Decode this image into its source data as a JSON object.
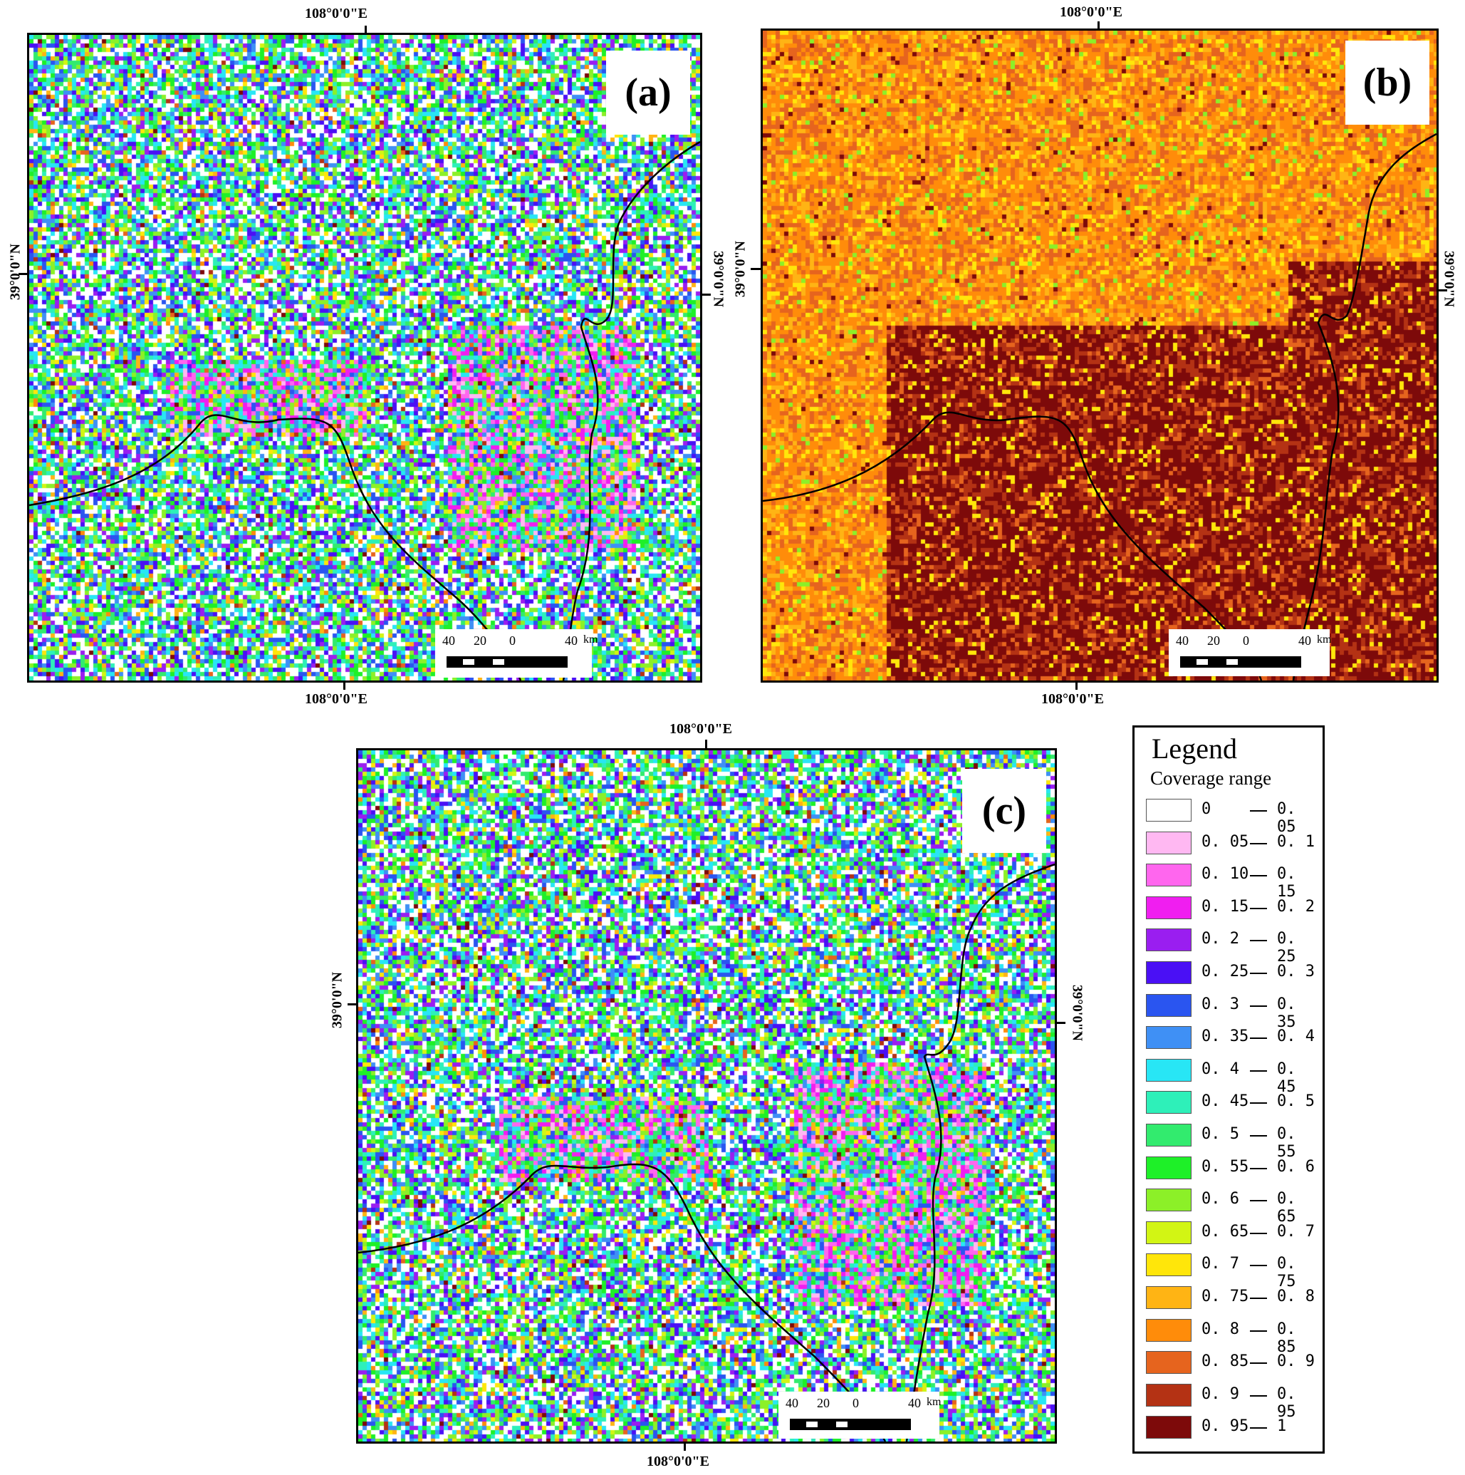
{
  "panels": [
    {
      "id": "a",
      "label": "(a)",
      "lon_top": "108°0'0\"E",
      "lon_bottom": "108°0'0\"E",
      "lat_left": "39°0'0\"N",
      "lat_right": "39°0'0\"N",
      "palette": "mixed"
    },
    {
      "id": "b",
      "label": "(b)",
      "lon_top": "108°0'0\"E",
      "lon_bottom": "108°0'0\"E",
      "lat_left": "39°0'0\"N",
      "lat_right": "39°0'0\"N",
      "palette": "warm"
    },
    {
      "id": "c",
      "label": "(c)",
      "lon_top": "108°0'0\"E",
      "lon_bottom": "108°0'0\"E",
      "lat_left": "39°0'0\"N",
      "lat_right": "39°0'0\"N",
      "palette": "mixed"
    }
  ],
  "scalebar": {
    "n40a": "40",
    "n20": "20",
    "n0": "0",
    "n40b": "40",
    "unit": "km"
  },
  "legend": {
    "title": "Legend",
    "subtitle": "Coverage range",
    "classes": [
      {
        "lo": "0",
        "hi": "0. 05",
        "color": "#ffffff"
      },
      {
        "lo": "0. 05",
        "hi": "0. 1",
        "color": "#ffb8f2"
      },
      {
        "lo": "0. 10",
        "hi": "0. 15",
        "color": "#ff66ee"
      },
      {
        "lo": "0. 15",
        "hi": "0. 2",
        "color": "#f01ef0"
      },
      {
        "lo": "0. 2",
        "hi": "0. 25",
        "color": "#9a1ef0"
      },
      {
        "lo": "0. 25",
        "hi": "0. 3",
        "color": "#4a10f5"
      },
      {
        "lo": "0. 3",
        "hi": "0. 35",
        "color": "#2a55f0"
      },
      {
        "lo": "0. 35",
        "hi": "0. 4",
        "color": "#3f90f5"
      },
      {
        "lo": "0. 4",
        "hi": "0. 45",
        "color": "#28e6f5"
      },
      {
        "lo": "0. 45",
        "hi": "0. 5",
        "color": "#2ef0b9"
      },
      {
        "lo": "0. 5",
        "hi": "0. 55",
        "color": "#32eb6e"
      },
      {
        "lo": "0. 55",
        "hi": "0. 6",
        "color": "#1ef028"
      },
      {
        "lo": "0. 6",
        "hi": "0. 65",
        "color": "#8cf028"
      },
      {
        "lo": "0. 65",
        "hi": "0. 7",
        "color": "#d2f514"
      },
      {
        "lo": "0. 7",
        "hi": "0. 75",
        "color": "#ffe60a"
      },
      {
        "lo": "0. 75",
        "hi": "0. 8",
        "color": "#ffb414"
      },
      {
        "lo": "0. 8",
        "hi": "0. 85",
        "color": "#ff8c0a"
      },
      {
        "lo": "0. 85",
        "hi": "0. 9",
        "color": "#e6641e"
      },
      {
        "lo": "0. 9",
        "hi": "0. 95",
        "color": "#b43214"
      },
      {
        "lo": "0. 95",
        "hi": "1",
        "color": "#7d0a0a"
      }
    ]
  }
}
